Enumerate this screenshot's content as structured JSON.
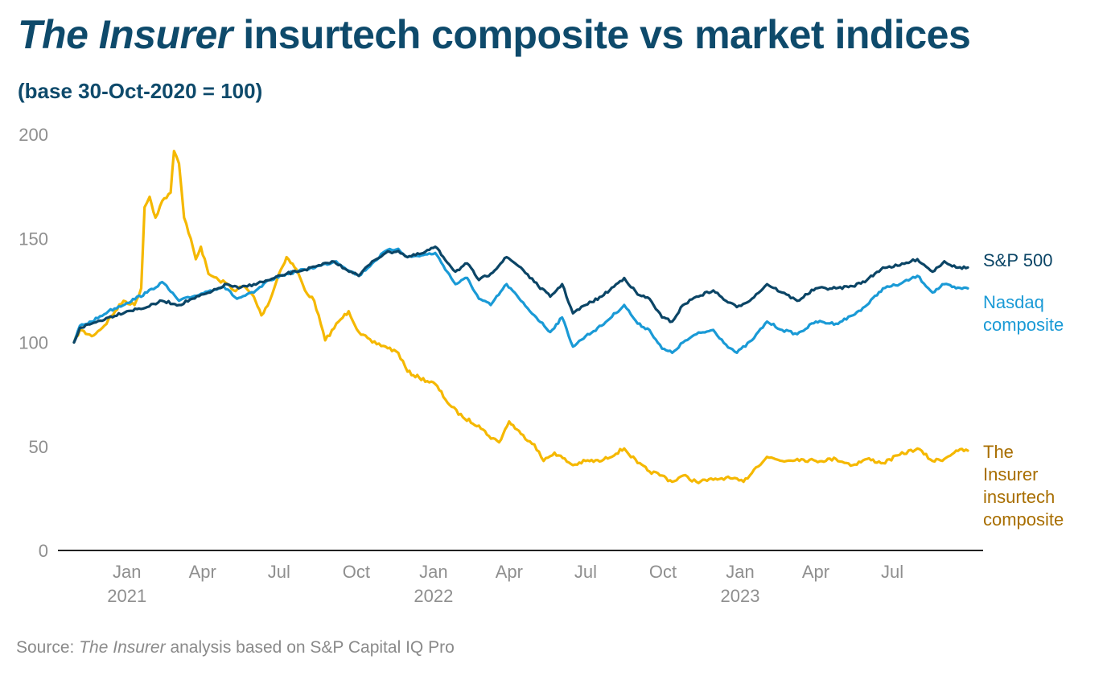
{
  "header": {
    "title_italic": "The Insurer",
    "title_rest": " insurtech composite vs market indices",
    "subtitle": "(base 30-Oct-2020 = 100)"
  },
  "footer": {
    "source_prefix": "Source: ",
    "source_italic": "The Insurer",
    "source_rest": " analysis based on S&P Capital IQ Pro"
  },
  "colors": {
    "sp500": "#0b4566",
    "nasdaq": "#1a9ad6",
    "insurtech": "#f5b800",
    "insurtech_label": "#a86e00",
    "axis": "#222222"
  },
  "chart_data": {
    "type": "line",
    "ylim": [
      0,
      200
    ],
    "y_ticks": [
      "0",
      "50",
      "100",
      "150",
      "200"
    ],
    "x_ticks": [
      {
        "date": "2021-01-01",
        "label": "Jan",
        "year": "2021"
      },
      {
        "date": "2021-04-01",
        "label": "Apr",
        "year": ""
      },
      {
        "date": "2021-07-01",
        "label": "Jul",
        "year": ""
      },
      {
        "date": "2021-10-01",
        "label": "Oct",
        "year": ""
      },
      {
        "date": "2022-01-01",
        "label": "Jan",
        "year": "2022"
      },
      {
        "date": "2022-04-01",
        "label": "Apr",
        "year": ""
      },
      {
        "date": "2022-07-01",
        "label": "Jul",
        "year": ""
      },
      {
        "date": "2022-10-01",
        "label": "Oct",
        "year": ""
      },
      {
        "date": "2023-01-01",
        "label": "Jan",
        "year": "2023"
      },
      {
        "date": "2023-04-01",
        "label": "Apr",
        "year": ""
      },
      {
        "date": "2023-07-01",
        "label": "Jul",
        "year": ""
      }
    ],
    "x_range": [
      "2020-10-01",
      "2023-10-25"
    ],
    "series": [
      {
        "key": "sp500",
        "name": "S&P 500",
        "label_lines": [
          "S&P 500"
        ],
        "points": [
          [
            "2020-10-30",
            100
          ],
          [
            "2020-11-06",
            107
          ],
          [
            "2020-11-20",
            109
          ],
          [
            "2020-12-10",
            112
          ],
          [
            "2021-01-01",
            115
          ],
          [
            "2021-01-25",
            117
          ],
          [
            "2021-02-12",
            120
          ],
          [
            "2021-03-04",
            118
          ],
          [
            "2021-03-20",
            121
          ],
          [
            "2021-04-10",
            124
          ],
          [
            "2021-04-30",
            128
          ],
          [
            "2021-05-14",
            126
          ],
          [
            "2021-06-01",
            128
          ],
          [
            "2021-06-20",
            130
          ],
          [
            "2021-07-10",
            133
          ],
          [
            "2021-08-01",
            135
          ],
          [
            "2021-08-20",
            137
          ],
          [
            "2021-09-02",
            139
          ],
          [
            "2021-09-25",
            134
          ],
          [
            "2021-10-04",
            132
          ],
          [
            "2021-10-20",
            139
          ],
          [
            "2021-11-05",
            143
          ],
          [
            "2021-11-20",
            144
          ],
          [
            "2021-12-01",
            141
          ],
          [
            "2021-12-20",
            143
          ],
          [
            "2022-01-03",
            146
          ],
          [
            "2022-01-27",
            134
          ],
          [
            "2022-02-10",
            138
          ],
          [
            "2022-02-24",
            130
          ],
          [
            "2022-03-10",
            133
          ],
          [
            "2022-03-29",
            141
          ],
          [
            "2022-04-15",
            136
          ],
          [
            "2022-05-01",
            129
          ],
          [
            "2022-05-20",
            122
          ],
          [
            "2022-06-03",
            128
          ],
          [
            "2022-06-16",
            114
          ],
          [
            "2022-07-01",
            118
          ],
          [
            "2022-07-20",
            122
          ],
          [
            "2022-08-16",
            131
          ],
          [
            "2022-09-01",
            123
          ],
          [
            "2022-09-15",
            121
          ],
          [
            "2022-09-30",
            112
          ],
          [
            "2022-10-12",
            110
          ],
          [
            "2022-10-25",
            118
          ],
          [
            "2022-11-10",
            122
          ],
          [
            "2022-11-30",
            125
          ],
          [
            "2022-12-15",
            120
          ],
          [
            "2022-12-28",
            117
          ],
          [
            "2023-01-15",
            121
          ],
          [
            "2023-02-02",
            128
          ],
          [
            "2023-02-20",
            124
          ],
          [
            "2023-03-10",
            120
          ],
          [
            "2023-04-01",
            126
          ],
          [
            "2023-04-25",
            126
          ],
          [
            "2023-05-15",
            127
          ],
          [
            "2023-06-01",
            130
          ],
          [
            "2023-06-20",
            136
          ],
          [
            "2023-07-10",
            137
          ],
          [
            "2023-07-31",
            140
          ],
          [
            "2023-08-18",
            134
          ],
          [
            "2023-09-01",
            139
          ],
          [
            "2023-09-15",
            136
          ],
          [
            "2023-09-29",
            136
          ]
        ]
      },
      {
        "key": "nasdaq",
        "name": "Nasdaq composite",
        "label_lines": [
          "Nasdaq",
          "composite"
        ],
        "points": [
          [
            "2020-10-30",
            100
          ],
          [
            "2020-11-06",
            108
          ],
          [
            "2020-11-20",
            110
          ],
          [
            "2020-12-10",
            115
          ],
          [
            "2021-01-01",
            119
          ],
          [
            "2021-01-25",
            124
          ],
          [
            "2021-02-12",
            129
          ],
          [
            "2021-03-04",
            120
          ],
          [
            "2021-03-20",
            122
          ],
          [
            "2021-04-10",
            125
          ],
          [
            "2021-04-26",
            127
          ],
          [
            "2021-05-12",
            121
          ],
          [
            "2021-06-01",
            124
          ],
          [
            "2021-06-20",
            130
          ],
          [
            "2021-07-10",
            133
          ],
          [
            "2021-08-01",
            135
          ],
          [
            "2021-08-20",
            137
          ],
          [
            "2021-09-07",
            139
          ],
          [
            "2021-09-25",
            134
          ],
          [
            "2021-10-04",
            132
          ],
          [
            "2021-10-20",
            138
          ],
          [
            "2021-11-05",
            144
          ],
          [
            "2021-11-20",
            145
          ],
          [
            "2021-12-01",
            141
          ],
          [
            "2021-12-20",
            142
          ],
          [
            "2022-01-03",
            143
          ],
          [
            "2022-01-27",
            128
          ],
          [
            "2022-02-10",
            131
          ],
          [
            "2022-02-24",
            121
          ],
          [
            "2022-03-10",
            118
          ],
          [
            "2022-03-29",
            128
          ],
          [
            "2022-04-15",
            120
          ],
          [
            "2022-05-01",
            113
          ],
          [
            "2022-05-20",
            105
          ],
          [
            "2022-06-03",
            112
          ],
          [
            "2022-06-16",
            98
          ],
          [
            "2022-07-01",
            103
          ],
          [
            "2022-07-20",
            108
          ],
          [
            "2022-08-16",
            118
          ],
          [
            "2022-09-01",
            109
          ],
          [
            "2022-09-15",
            106
          ],
          [
            "2022-09-30",
            97
          ],
          [
            "2022-10-12",
            95
          ],
          [
            "2022-10-25",
            100
          ],
          [
            "2022-11-10",
            104
          ],
          [
            "2022-11-30",
            106
          ],
          [
            "2022-12-15",
            99
          ],
          [
            "2022-12-28",
            95
          ],
          [
            "2023-01-15",
            101
          ],
          [
            "2023-02-02",
            110
          ],
          [
            "2023-02-20",
            106
          ],
          [
            "2023-03-10",
            104
          ],
          [
            "2023-04-01",
            110
          ],
          [
            "2023-04-25",
            109
          ],
          [
            "2023-05-15",
            113
          ],
          [
            "2023-06-01",
            118
          ],
          [
            "2023-06-20",
            126
          ],
          [
            "2023-07-10",
            128
          ],
          [
            "2023-07-31",
            132
          ],
          [
            "2023-08-18",
            124
          ],
          [
            "2023-09-01",
            128
          ],
          [
            "2023-09-15",
            126
          ],
          [
            "2023-09-29",
            126
          ]
        ]
      },
      {
        "key": "insurtech",
        "name": "The Insurer insurtech composite",
        "label_lines": [
          "The",
          "Insurer",
          "insurtech",
          "composite"
        ],
        "points": [
          [
            "2020-10-30",
            100
          ],
          [
            "2020-11-06",
            106
          ],
          [
            "2020-11-20",
            103
          ],
          [
            "2020-12-05",
            108
          ],
          [
            "2020-12-18",
            115
          ],
          [
            "2020-12-28",
            120
          ],
          [
            "2021-01-10",
            118
          ],
          [
            "2021-01-18",
            126
          ],
          [
            "2021-01-22",
            165
          ],
          [
            "2021-01-28",
            170
          ],
          [
            "2021-02-04",
            160
          ],
          [
            "2021-02-12",
            168
          ],
          [
            "2021-02-22",
            172
          ],
          [
            "2021-02-26",
            192
          ],
          [
            "2021-03-04",
            186
          ],
          [
            "2021-03-10",
            160
          ],
          [
            "2021-03-18",
            150
          ],
          [
            "2021-03-24",
            140
          ],
          [
            "2021-03-30",
            146
          ],
          [
            "2021-04-08",
            133
          ],
          [
            "2021-04-20",
            130
          ],
          [
            "2021-05-01",
            128
          ],
          [
            "2021-05-08",
            125
          ],
          [
            "2021-05-20",
            127
          ],
          [
            "2021-06-01",
            122
          ],
          [
            "2021-06-10",
            113
          ],
          [
            "2021-06-20",
            120
          ],
          [
            "2021-07-01",
            133
          ],
          [
            "2021-07-10",
            141
          ],
          [
            "2021-07-22",
            135
          ],
          [
            "2021-08-01",
            125
          ],
          [
            "2021-08-12",
            120
          ],
          [
            "2021-08-25",
            101
          ],
          [
            "2021-09-10",
            110
          ],
          [
            "2021-09-22",
            115
          ],
          [
            "2021-10-04",
            105
          ],
          [
            "2021-10-20",
            100
          ],
          [
            "2021-11-05",
            98
          ],
          [
            "2021-11-20",
            95
          ],
          [
            "2021-12-01",
            86
          ],
          [
            "2021-12-15",
            83
          ],
          [
            "2022-01-03",
            80
          ],
          [
            "2022-01-20",
            70
          ],
          [
            "2022-02-05",
            64
          ],
          [
            "2022-02-24",
            60
          ],
          [
            "2022-03-08",
            55
          ],
          [
            "2022-03-20",
            52
          ],
          [
            "2022-04-01",
            62
          ],
          [
            "2022-04-15",
            56
          ],
          [
            "2022-05-01",
            51
          ],
          [
            "2022-05-12",
            43
          ],
          [
            "2022-05-25",
            47
          ],
          [
            "2022-06-16",
            41
          ],
          [
            "2022-07-01",
            43
          ],
          [
            "2022-07-20",
            43
          ],
          [
            "2022-08-16",
            49
          ],
          [
            "2022-09-01",
            42
          ],
          [
            "2022-09-15",
            38
          ],
          [
            "2022-09-30",
            36
          ],
          [
            "2022-10-12",
            33
          ],
          [
            "2022-10-25",
            36
          ],
          [
            "2022-11-10",
            33
          ],
          [
            "2022-11-30",
            34
          ],
          [
            "2022-12-15",
            35
          ],
          [
            "2023-01-05",
            33
          ],
          [
            "2023-01-20",
            40
          ],
          [
            "2023-02-02",
            45
          ],
          [
            "2023-02-20",
            43
          ],
          [
            "2023-03-10",
            44
          ],
          [
            "2023-04-01",
            43
          ],
          [
            "2023-04-25",
            44
          ],
          [
            "2023-05-15",
            41
          ],
          [
            "2023-06-01",
            44
          ],
          [
            "2023-06-20",
            42
          ],
          [
            "2023-07-10",
            46
          ],
          [
            "2023-07-31",
            49
          ],
          [
            "2023-08-18",
            43
          ],
          [
            "2023-09-01",
            44
          ],
          [
            "2023-09-15",
            48
          ],
          [
            "2023-09-29",
            48
          ]
        ]
      }
    ]
  }
}
